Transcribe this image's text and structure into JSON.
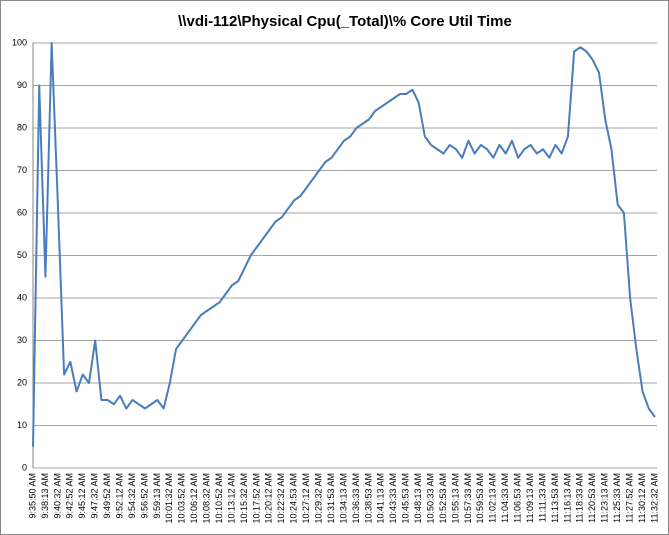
{
  "chart_data": {
    "type": "line",
    "title": "\\\\vdi-112\\Physical Cpu(_Total)\\% Core Util Time",
    "categories": [
      "9:35:50 AM",
      null,
      "9:38:13 AM",
      null,
      "9:40:32 AM",
      null,
      "9:42:52 AM",
      null,
      "9:45:12 AM",
      null,
      "9:47:32 AM",
      null,
      "9:49:52 AM",
      null,
      "9:52:12 AM",
      null,
      "9:54:32 AM",
      null,
      "9:56:52 AM",
      null,
      "9:59:13 AM",
      null,
      "10:01:32 AM",
      null,
      "10:03:52 AM",
      null,
      "10:06:12 AM",
      null,
      "10:08:32 AM",
      null,
      "10:10:52 AM",
      null,
      "10:13:12 AM",
      null,
      "10:15:32 AM",
      null,
      "10:17:52 AM",
      null,
      "10:20:12 AM",
      null,
      "10:22:32 AM",
      null,
      "10:24:53 AM",
      null,
      "10:27:12 AM",
      null,
      "10:29:32 AM",
      null,
      "10:31:53 AM",
      null,
      "10:34:13 AM",
      null,
      "10:36:33 AM",
      null,
      "10:38:53 AM",
      null,
      "10:41:13 AM",
      null,
      "10:43:33 AM",
      null,
      "10:45:53 AM",
      null,
      "10:48:13 AM",
      null,
      "10:50:33 AM",
      null,
      "10:52:53 AM",
      null,
      "10:55:13 AM",
      null,
      "10:57:33 AM",
      null,
      "10:59:53 AM",
      null,
      "11:02:13 AM",
      null,
      "11:04:33 AM",
      null,
      "11:06:53 AM",
      null,
      "11:09:13 AM",
      null,
      "11:11:33 AM",
      null,
      "11:13:53 AM",
      null,
      "11:16:13 AM",
      null,
      "11:18:33 AM",
      null,
      "11:20:53 AM",
      null,
      "11:23:13 AM",
      null,
      "11:25:33 AM",
      null,
      "11:27:52 AM",
      null,
      "11:30:12 AM",
      null,
      "11:32:32 AM"
    ],
    "series": [
      {
        "name": "\\\\vdi-112\\Physical Cpu(_Total)\\% Core Util Time",
        "color": "#4a7ebb",
        "values": [
          5,
          90,
          45,
          100,
          62,
          22,
          25,
          18,
          22,
          20,
          30,
          16,
          16,
          15,
          17,
          14,
          16,
          15,
          14,
          15,
          16,
          14,
          20,
          28,
          30,
          32,
          34,
          36,
          37,
          38,
          39,
          41,
          43,
          44,
          47,
          50,
          52,
          54,
          56,
          58,
          59,
          61,
          63,
          64,
          66,
          68,
          70,
          72,
          73,
          75,
          77,
          78,
          80,
          81,
          82,
          84,
          85,
          86,
          87,
          88,
          88,
          89,
          86,
          78,
          76,
          75,
          74,
          76,
          75,
          73,
          77,
          74,
          76,
          75,
          73,
          76,
          74,
          77,
          73,
          75,
          76,
          74,
          75,
          73,
          76,
          74,
          78,
          98,
          99,
          98,
          96,
          93,
          82,
          75,
          62,
          60,
          40,
          28,
          18,
          14,
          12
        ]
      }
    ],
    "ylim": [
      0,
      100
    ],
    "yticks": [
      0,
      10,
      20,
      30,
      40,
      50,
      60,
      70,
      80,
      90,
      100
    ],
    "grid": true
  }
}
